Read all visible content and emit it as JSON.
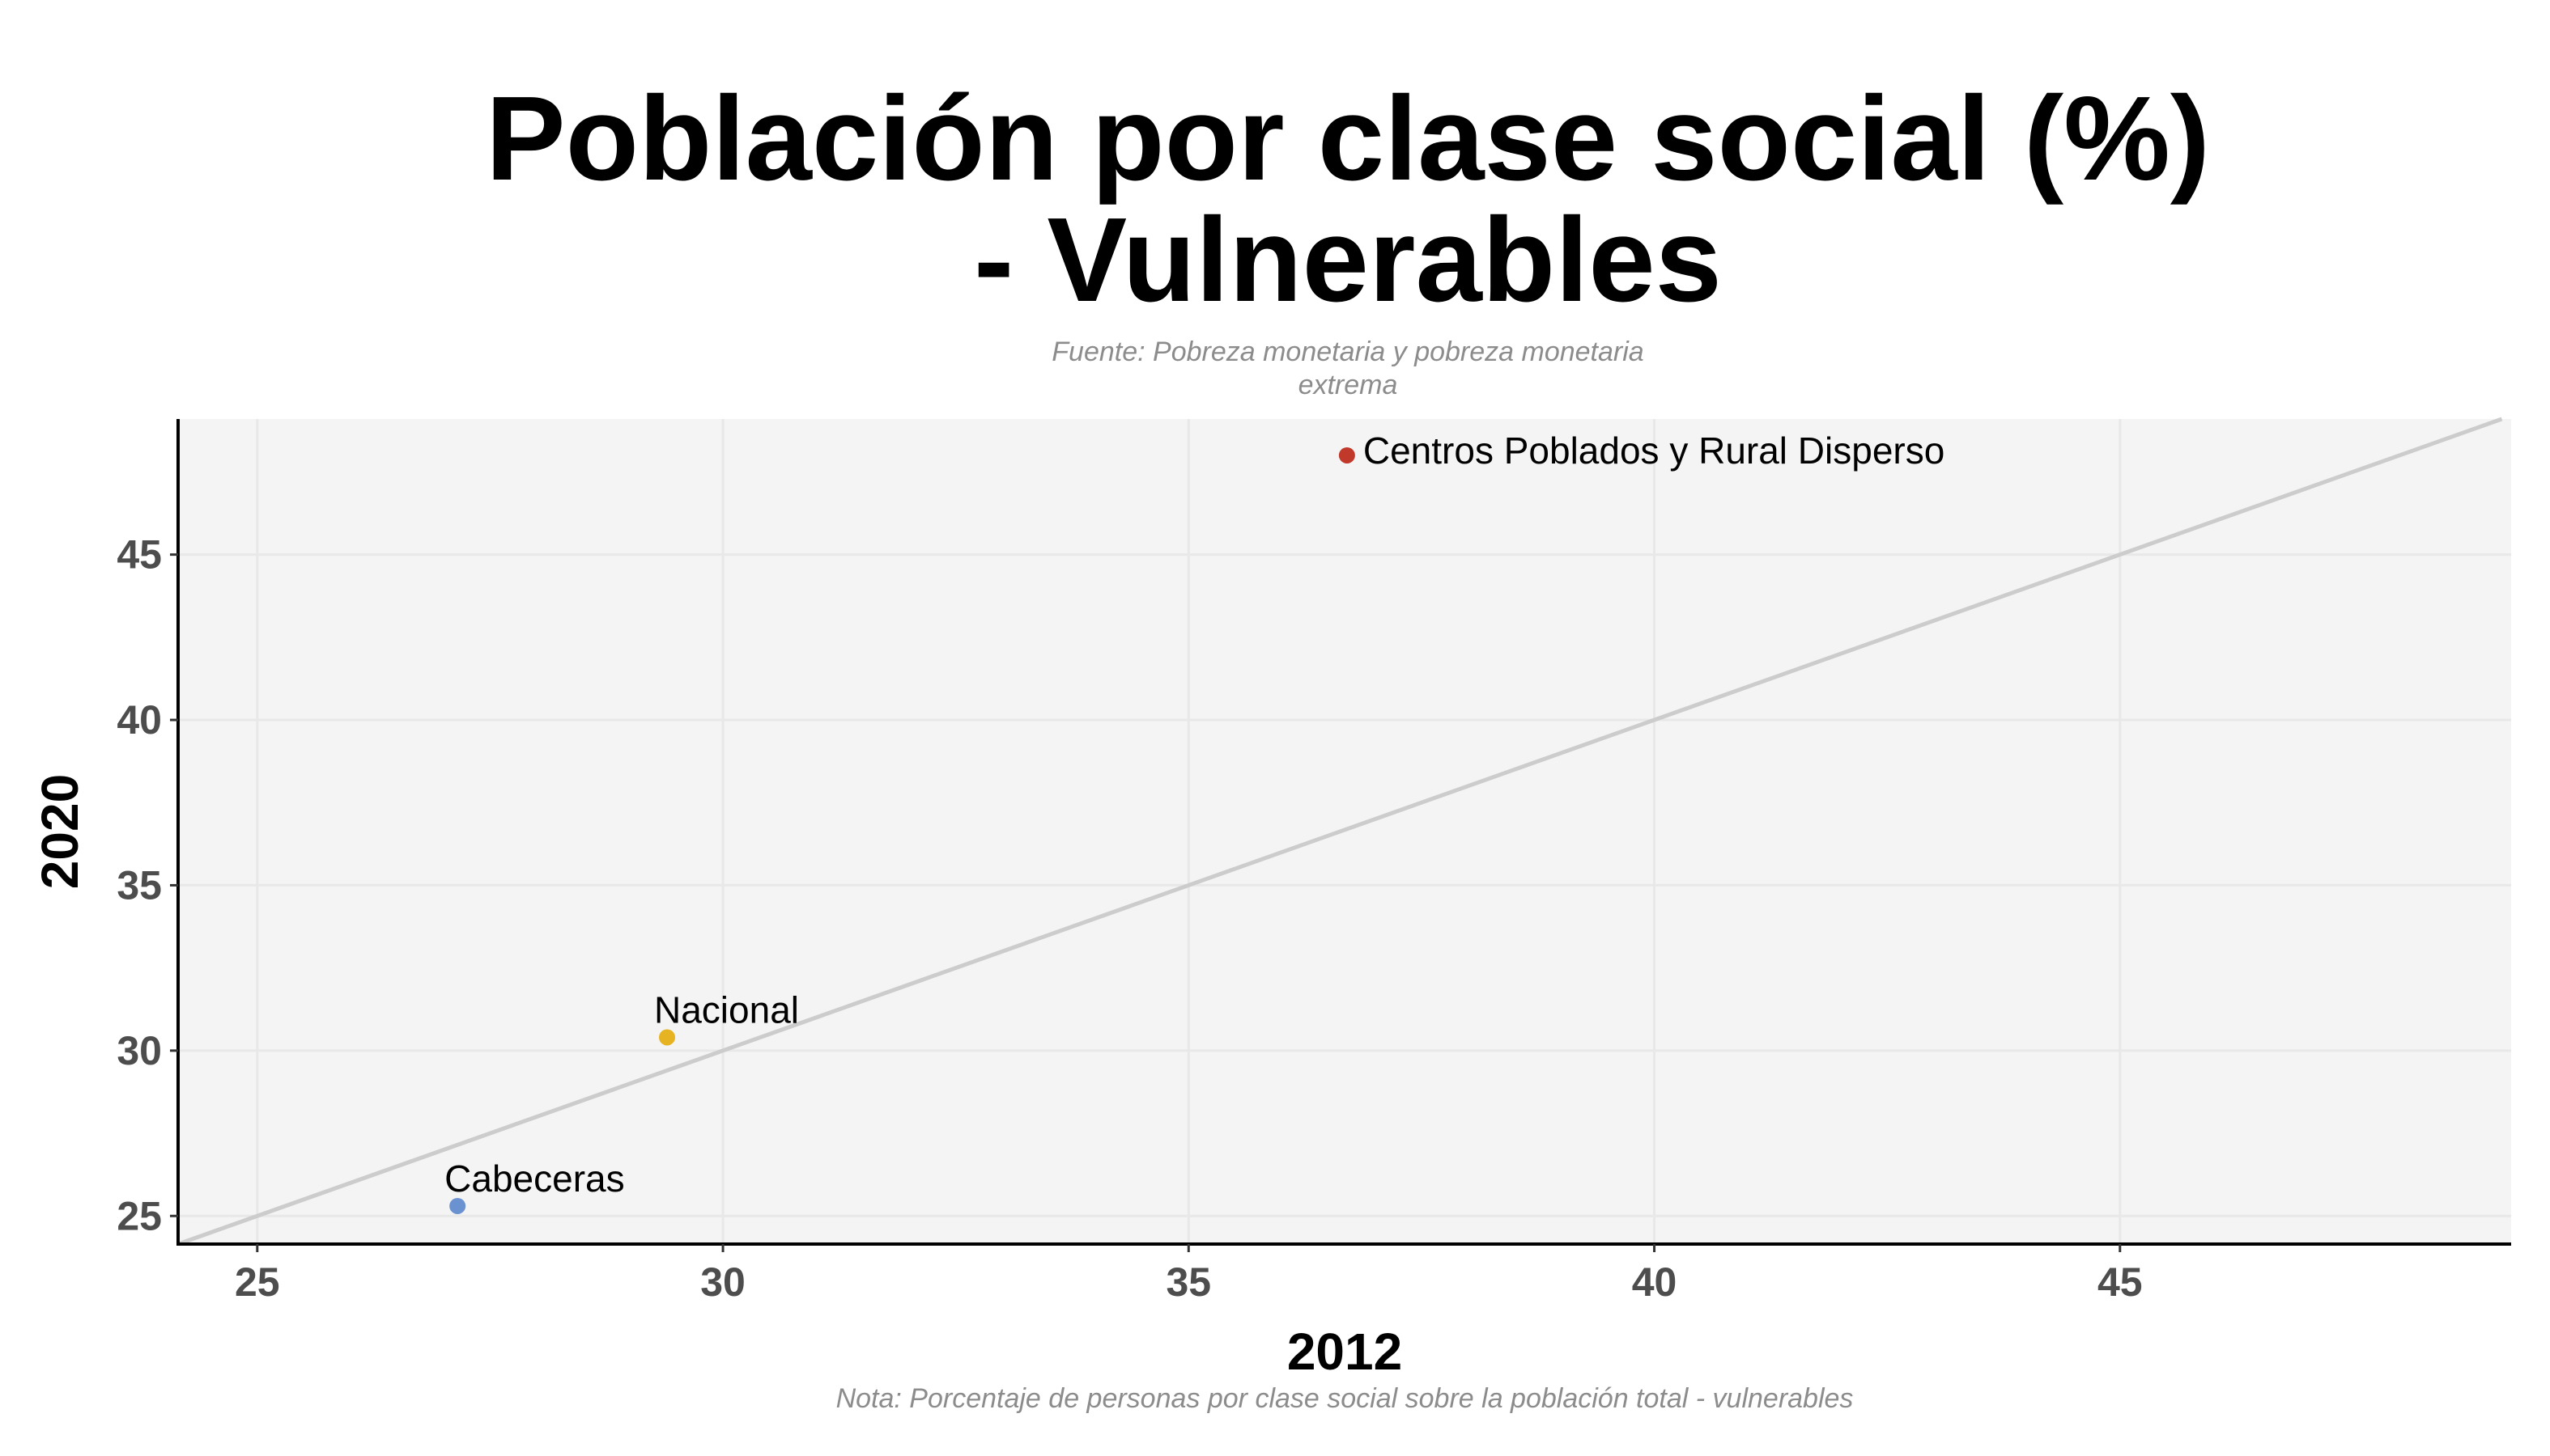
{
  "chart_data": {
    "type": "scatter",
    "title_lines": [
      "Población por clase social (%)",
      "- Vulnerables"
    ],
    "subtitle_lines": [
      "Fuente: Pobreza monetaria y pobreza monetaria",
      "extrema"
    ],
    "caption": "Nota: Porcentaje de personas por clase social sobre la población total - vulnerables",
    "xlabel": "2012",
    "ylabel": "2020",
    "xlim": [
      24.15,
      49.2
    ],
    "ylim": [
      24.15,
      49.1
    ],
    "x_ticks": [
      25,
      30,
      35,
      40,
      45
    ],
    "y_ticks": [
      25,
      30,
      35,
      40,
      45
    ],
    "grid": true,
    "reference_line": {
      "type": "identity",
      "color": "#cccccc"
    },
    "panel_background": "#f4f4f4",
    "grid_color": "#e8e8e8",
    "points": [
      {
        "label": "Centros Poblados y Rural Disperso",
        "x": 36.7,
        "y": 48.0,
        "color": "#c0392b"
      },
      {
        "label": "Nacional",
        "x": 29.4,
        "y": 30.4,
        "color": "#e6b422"
      },
      {
        "label": "Cabeceras",
        "x": 27.15,
        "y": 25.3,
        "color": "#6b92d0"
      }
    ]
  }
}
